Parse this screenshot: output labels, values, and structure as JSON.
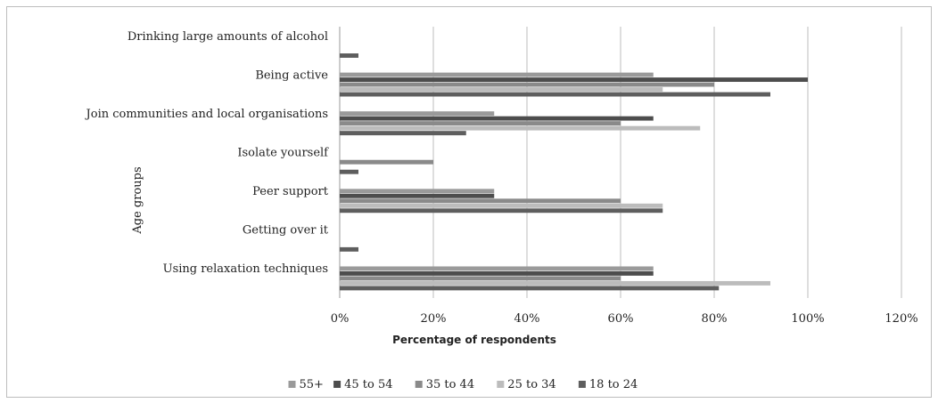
{
  "chart_data": {
    "type": "bar",
    "orientation": "horizontal",
    "title": "",
    "xlabel": "Percentage of respondents",
    "ylabel": "Age groups",
    "xlim": [
      0,
      120
    ],
    "x_ticks": [
      "0%",
      "20%",
      "40%",
      "60%",
      "80%",
      "100%",
      "120%"
    ],
    "grid": "vertical",
    "legend_position": "bottom",
    "categories": [
      "Drinking large amounts of alcohol",
      "Being active",
      "Join communities and local organisations",
      "Isolate yourself",
      "Peer support",
      "Getting over it",
      "Using relaxation techniques"
    ],
    "series": [
      {
        "name": "55+",
        "color": "#9a9a9a",
        "values": [
          0,
          67,
          33,
          0,
          33,
          0,
          67
        ]
      },
      {
        "name": "45 to 54",
        "color": "#4d4d4d",
        "values": [
          0,
          100,
          67,
          0,
          33,
          0,
          67
        ]
      },
      {
        "name": "35 to 44",
        "color": "#8a8a8a",
        "values": [
          0,
          80,
          60,
          20,
          60,
          0,
          60
        ]
      },
      {
        "name": "25 to 34",
        "color": "#bcbcbc",
        "values": [
          0,
          69,
          77,
          0,
          69,
          0,
          92
        ]
      },
      {
        "name": "18 to 24",
        "color": "#5e5e5e",
        "values": [
          4,
          92,
          27,
          4,
          69,
          4,
          81
        ]
      }
    ]
  }
}
